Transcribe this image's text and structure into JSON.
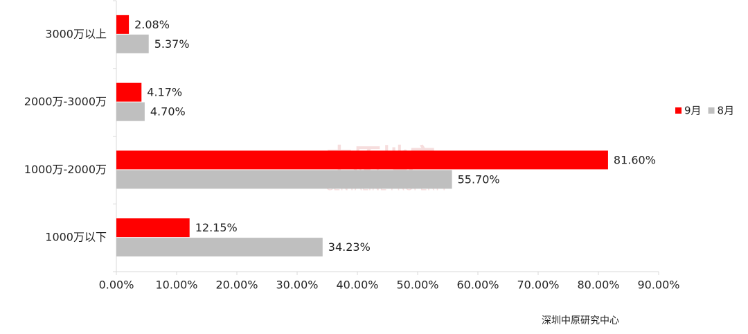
{
  "chart_data": {
    "type": "bar",
    "orientation": "horizontal",
    "categories": [
      "3000万以上",
      "2000万-3000万",
      "1000万-2000万",
      "1000万以下"
    ],
    "series": [
      {
        "name": "9月",
        "color": "#ff0000",
        "values": [
          2.08,
          4.17,
          81.6,
          12.15
        ],
        "value_labels": [
          "2.08%",
          "4.17%",
          "81.60%",
          "12.15%"
        ]
      },
      {
        "name": "8月",
        "color": "#bfbfbf",
        "values": [
          5.37,
          4.7,
          55.7,
          34.23
        ],
        "value_labels": [
          "5.37%",
          "4.70%",
          "55.70%",
          "34.23%"
        ]
      }
    ],
    "xlim": [
      0,
      90
    ],
    "xticks": [
      {
        "value": 0,
        "label": "0.00%"
      },
      {
        "value": 10,
        "label": "10.00%"
      },
      {
        "value": 20,
        "label": "20.00%"
      },
      {
        "value": 30,
        "label": "30.00%"
      },
      {
        "value": 40,
        "label": "40.00%"
      },
      {
        "value": 50,
        "label": "50.00%"
      },
      {
        "value": 60,
        "label": "60.00%"
      },
      {
        "value": 70,
        "label": "70.00%"
      },
      {
        "value": 80,
        "label": "80.00%"
      },
      {
        "value": 90,
        "label": "90.00%"
      }
    ],
    "grid": false,
    "legend_position": "right",
    "watermark": [
      "中原地产",
      "CENTALINE PROPERTY"
    ],
    "source": "深圳中原研究中心"
  }
}
